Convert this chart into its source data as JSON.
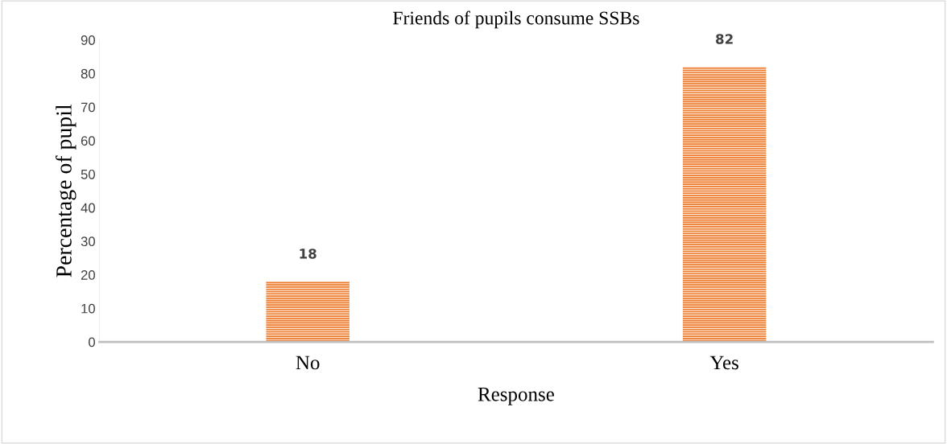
{
  "chart_data": {
    "type": "bar",
    "title": "Friends of pupils consume SSBs",
    "xlabel": "Response",
    "ylabel": "Percentage of pupil",
    "categories": [
      "No",
      "Yes"
    ],
    "values": [
      18,
      82
    ],
    "color": "#ed7d31",
    "ylim": [
      0,
      90
    ],
    "yticks": [
      0,
      10,
      20,
      30,
      40,
      50,
      60,
      70,
      80,
      90
    ],
    "grid": false,
    "data_labels": true
  }
}
